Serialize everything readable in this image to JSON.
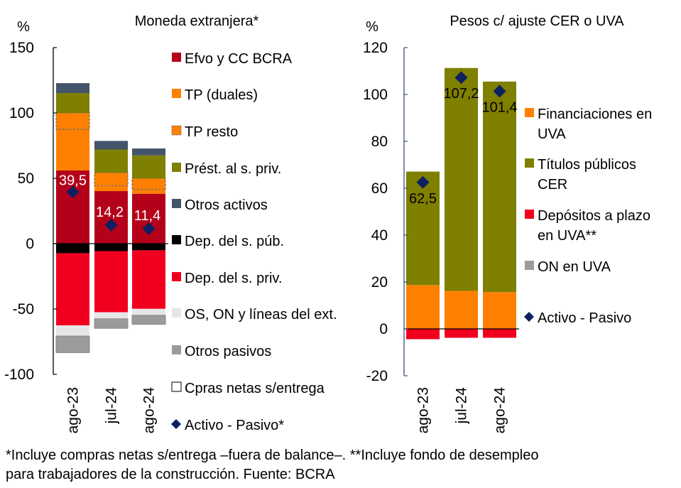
{
  "chart_data": [
    {
      "type": "bar",
      "stacked": true,
      "title": "Moneda extranjera*",
      "ylabel": "%",
      "ylim": [
        -100,
        150
      ],
      "yticks": [
        150,
        100,
        50,
        0,
        -50,
        -100
      ],
      "categories": [
        "ago-23",
        "jul-24",
        "ago-24"
      ],
      "series": [
        {
          "name": "Efvo y CC BCRA",
          "color": "#b5001a",
          "values": [
            56.0,
            40.2,
            38.2
          ]
        },
        {
          "name": "TP (duales)",
          "color": "#ff8000",
          "values": [
            31.5,
            4.2,
            3.3
          ]
        },
        {
          "name": "TP resto",
          "color": "#ff8000",
          "dashed": true,
          "values": [
            12.5,
            9.9,
            8.5
          ]
        },
        {
          "name": "Prést. al s. priv.",
          "color": "#7f7f00",
          "values": [
            15.2,
            17.7,
            17.5
          ]
        },
        {
          "name": "Otros activos",
          "color": "#44546a",
          "values": [
            7.6,
            6.6,
            5.3
          ]
        },
        {
          "name": "Dep. del s. púb.",
          "color": "#000000",
          "values": [
            -7.3,
            -5.7,
            -5.1
          ]
        },
        {
          "name": "Dep. del s. priv.",
          "color": "#f0001e",
          "values": [
            -55.2,
            -46.8,
            -44.8
          ]
        },
        {
          "name": "OS, ON y líneas del ext.",
          "color": "#e6e6e6",
          "values": [
            -8.2,
            -5.0,
            -4.9
          ]
        },
        {
          "name": "Otros pasivos",
          "color": "#9b9b9b",
          "values": [
            -12.7,
            -7.3,
            -6.9
          ]
        },
        {
          "name": "Cpras netas s/entrega",
          "color": "#ffffff",
          "values": [
            0,
            0,
            0
          ]
        }
      ],
      "line_series": {
        "name": "Activo - Pasivo*",
        "marker": "diamond",
        "color": "#0d2160",
        "values": [
          39.5,
          14.2,
          11.4
        ],
        "labels": [
          "39,5",
          "14,2",
          "11,4"
        ]
      },
      "legend_position": "right"
    },
    {
      "type": "bar",
      "stacked": true,
      "title": "Pesos c/ ajuste  CER o UVA",
      "ylabel": "%",
      "ylim": [
        -20,
        120
      ],
      "yticks": [
        120,
        100,
        80,
        60,
        40,
        20,
        0,
        -20
      ],
      "categories": [
        "ago-23",
        "jul-24",
        "ago-24"
      ],
      "series": [
        {
          "name": "Financiaciones en UVA",
          "color": "#ff8000",
          "values": [
            18.7,
            16.2,
            15.7
          ]
        },
        {
          "name": "Títulos públicos CER",
          "color": "#7f7f00",
          "values": [
            48.4,
            95.1,
            89.8
          ]
        },
        {
          "name": "Depósitos a plazo en UVA**",
          "color": "#f0001e",
          "values": [
            -4.4,
            -3.8,
            -3.8
          ]
        },
        {
          "name": "ON en UVA",
          "color": "#9b9b9b",
          "values": [
            0,
            0,
            0
          ]
        }
      ],
      "line_series": {
        "name": "Activo - Pasivo",
        "marker": "diamond",
        "color": "#0d2160",
        "values": [
          62.5,
          107.2,
          101.4
        ],
        "labels": [
          "62,5",
          "107,2",
          "101,4"
        ]
      },
      "legend_position": "right"
    }
  ],
  "footnote": {
    "line1": "*Incluye compras netas s/entrega –fuera de balance–. **Incluye fondo de desempleo",
    "line2": "para trabajadores de la construcción. Fuente: BCRA"
  }
}
